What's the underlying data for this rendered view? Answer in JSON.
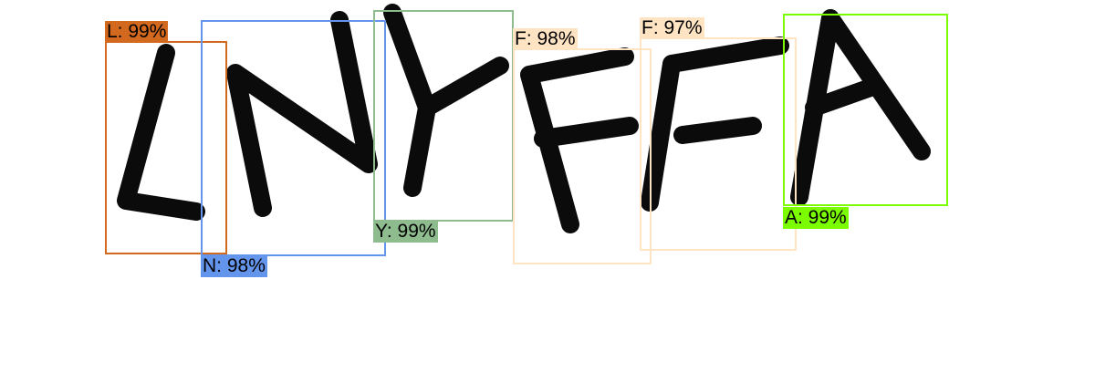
{
  "captcha_text": "LNYFFA",
  "detections": [
    {
      "id": "L",
      "label": "L: 99%",
      "char": "L",
      "confidence": 0.99,
      "color": "#d2691e"
    },
    {
      "id": "N",
      "label": "N: 98%",
      "char": "N",
      "confidence": 0.98,
      "color": "#6495ed"
    },
    {
      "id": "Y",
      "label": "Y: 99%",
      "char": "Y",
      "confidence": 0.99,
      "color": "#8fbc8f"
    },
    {
      "id": "F1",
      "label": "F: 98%",
      "char": "F",
      "confidence": 0.98,
      "color": "#ffe4c4"
    },
    {
      "id": "F2",
      "label": "F: 97%",
      "char": "F",
      "confidence": 0.97,
      "color": "#ffe4c4"
    },
    {
      "id": "A",
      "label": "A: 99%",
      "char": "A",
      "confidence": 0.99,
      "color": "#7cfc00"
    }
  ]
}
